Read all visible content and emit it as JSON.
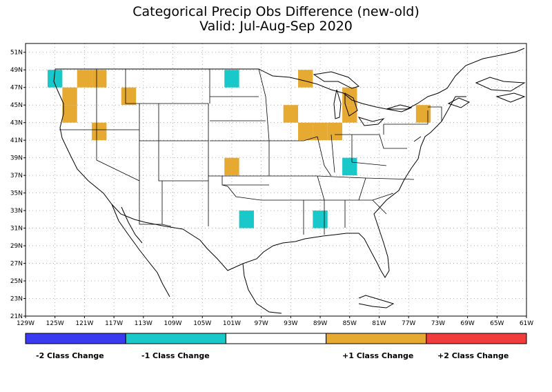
{
  "title": "Categorical Precip Obs Difference (new-old)",
  "subtitle": "Valid: Jul-Aug-Sep 2020",
  "lat_labels": [
    "51N",
    "49N",
    "47N",
    "45N",
    "43N",
    "41N",
    "39N",
    "37N",
    "35N",
    "33N",
    "31N",
    "29N",
    "27N",
    "25N",
    "23N",
    "21N"
  ],
  "lon_labels": [
    "129W",
    "125W",
    "121W",
    "117W",
    "113W",
    "109W",
    "105W",
    "101W",
    "97W",
    "93W",
    "89W",
    "85W",
    "81W",
    "77W",
    "73W",
    "69W",
    "65W",
    "61W"
  ],
  "legend": [
    {
      "label": "-2 Class Change",
      "color": "#3a3af0"
    },
    {
      "label": "-1 Class Change",
      "color": "#19c8c8"
    },
    {
      "label": "",
      "color": "#ffffff"
    },
    {
      "label": "+1 Class Change",
      "color": "#e6aa32"
    },
    {
      "label": "+2 Class Change",
      "color": "#f03c3c"
    }
  ],
  "chart_data": {
    "type": "heatmap",
    "grid_cell_deg": 2,
    "lon_range": [
      -129,
      -61
    ],
    "lat_range": [
      21,
      52
    ],
    "cells": [
      {
        "lon": -125,
        "lat": 48,
        "value": -1
      },
      {
        "lon": -121,
        "lat": 48,
        "value": 1
      },
      {
        "lon": -119,
        "lat": 48,
        "value": 1
      },
      {
        "lon": -123,
        "lat": 46,
        "value": 1
      },
      {
        "lon": -123,
        "lat": 44,
        "value": 1
      },
      {
        "lon": -115,
        "lat": 46,
        "value": 1
      },
      {
        "lon": -119,
        "lat": 42,
        "value": 1
      },
      {
        "lon": -101,
        "lat": 48,
        "value": -1
      },
      {
        "lon": -91,
        "lat": 48,
        "value": 1
      },
      {
        "lon": -93,
        "lat": 44,
        "value": 1
      },
      {
        "lon": -91,
        "lat": 42,
        "value": 1
      },
      {
        "lon": -89,
        "lat": 42,
        "value": 1
      },
      {
        "lon": -87,
        "lat": 42,
        "value": 1
      },
      {
        "lon": -85,
        "lat": 46,
        "value": 1
      },
      {
        "lon": -85,
        "lat": 44,
        "value": 1
      },
      {
        "lon": -75,
        "lat": 44,
        "value": 1
      },
      {
        "lon": -101,
        "lat": 38,
        "value": 1
      },
      {
        "lon": -85,
        "lat": 38,
        "value": -1
      },
      {
        "lon": -99,
        "lat": 32,
        "value": -1
      },
      {
        "lon": -89,
        "lat": 32,
        "value": -1
      }
    ],
    "grid": true
  }
}
